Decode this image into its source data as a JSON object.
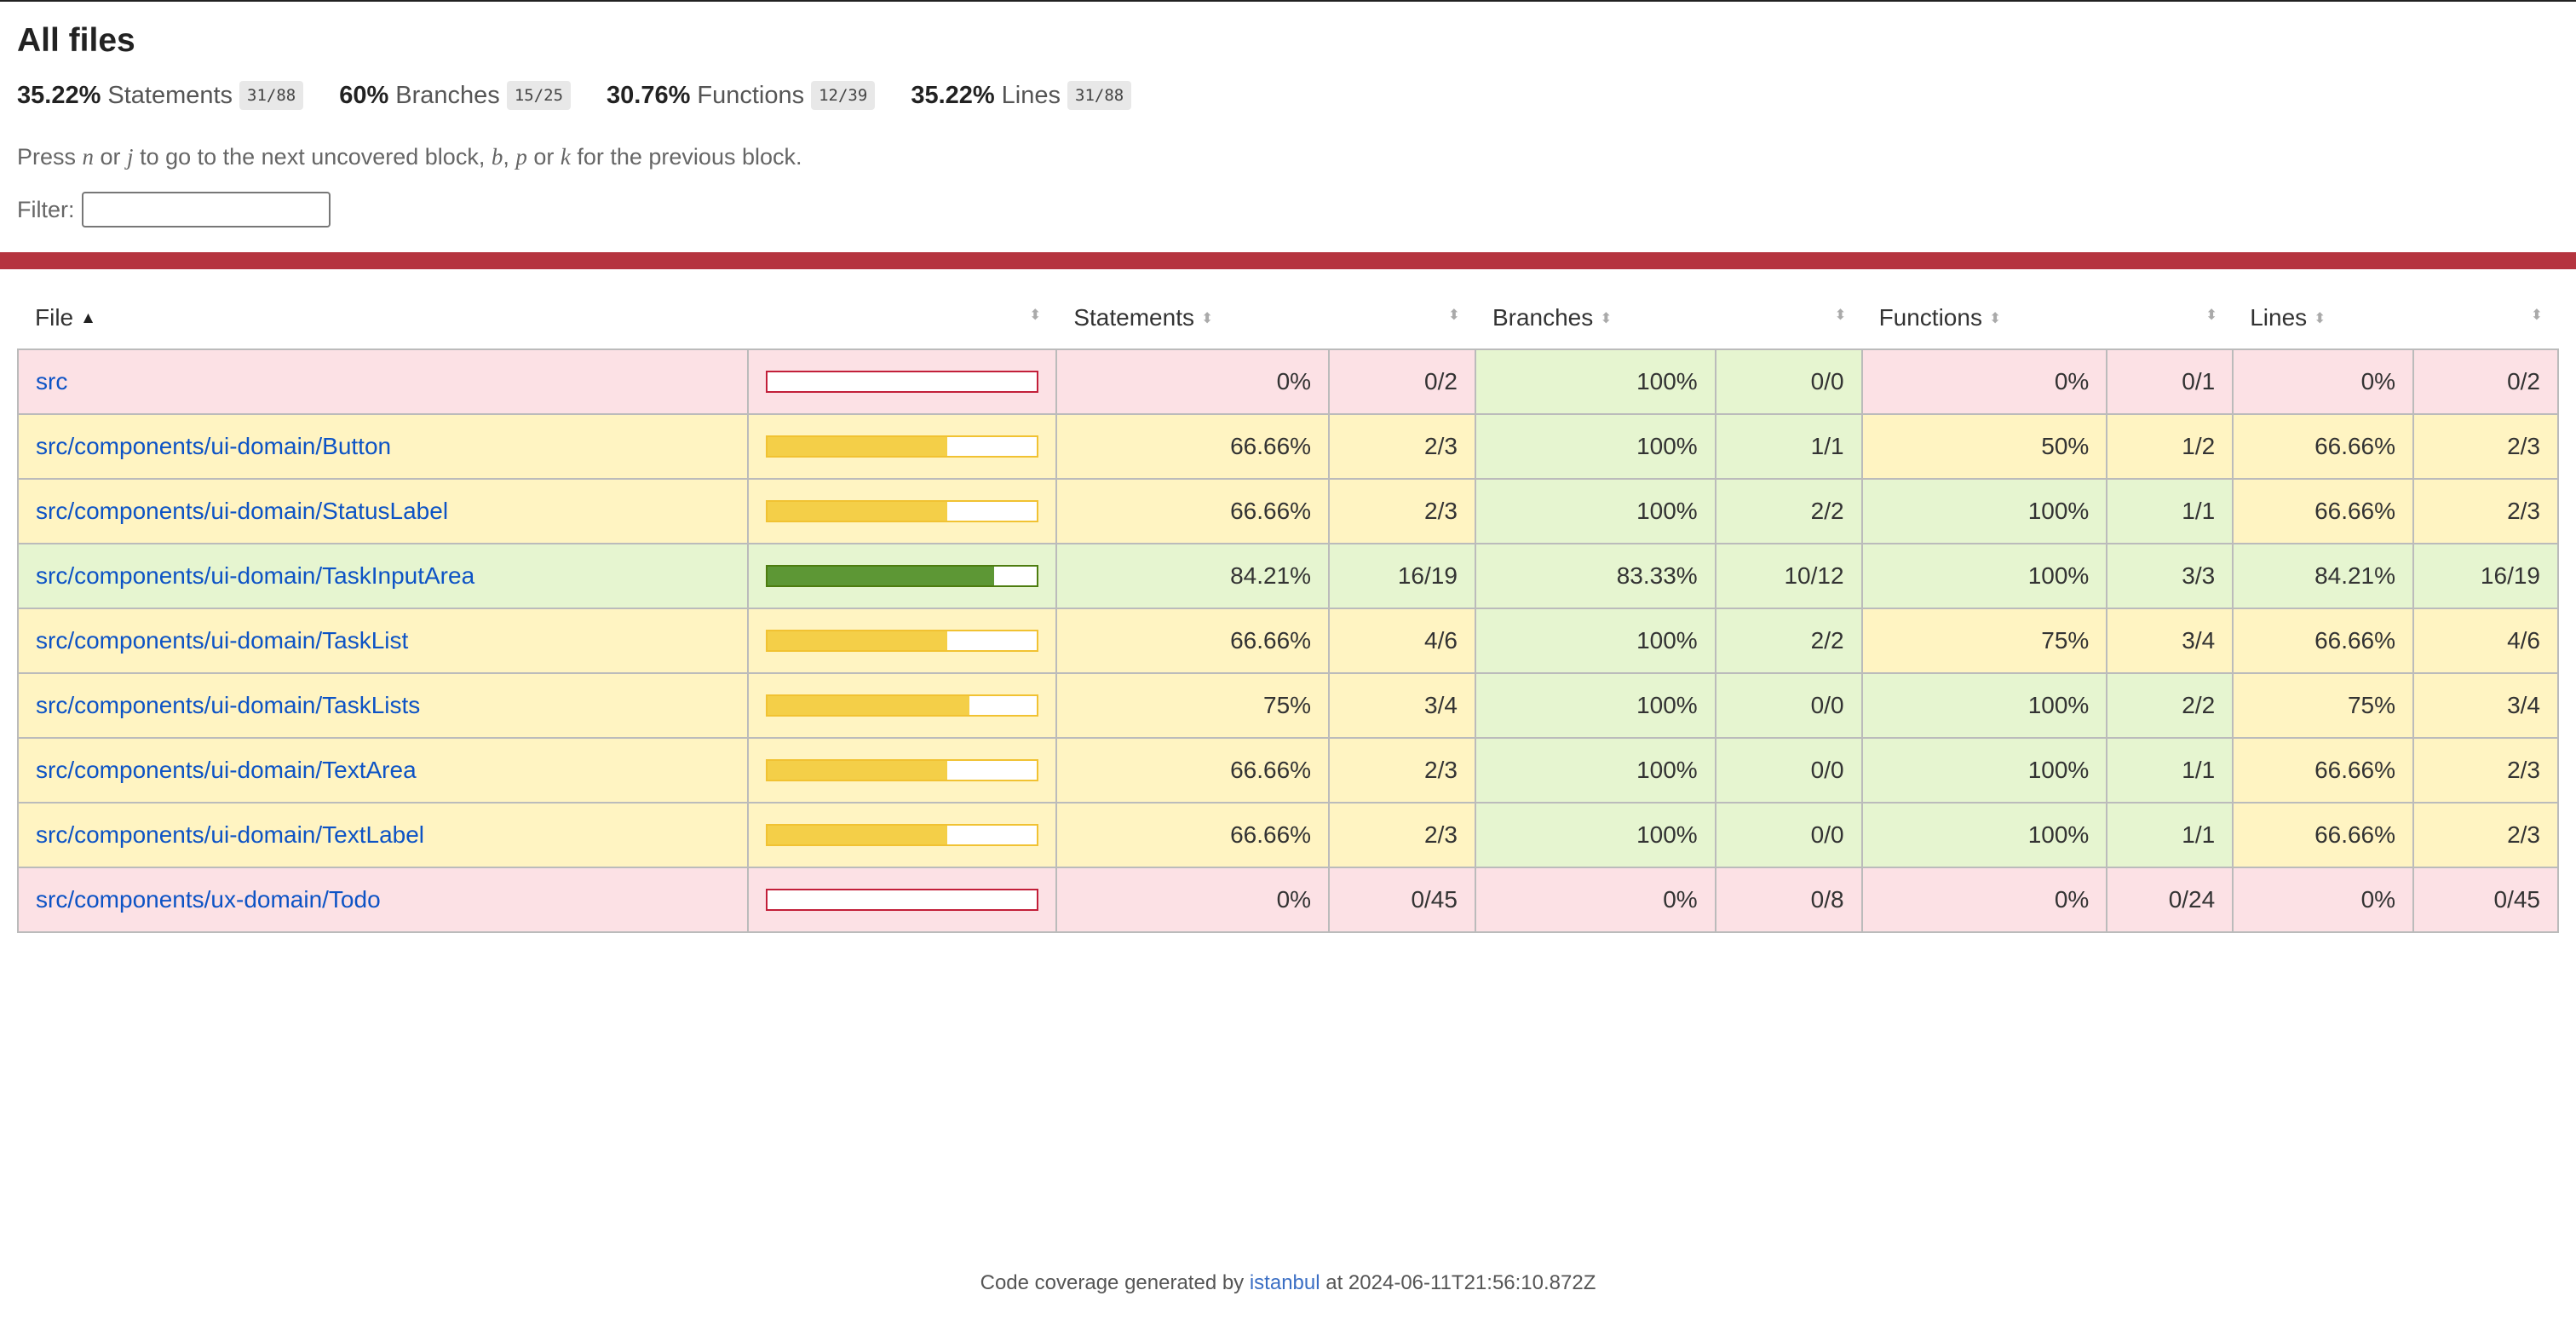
{
  "title": "All files",
  "summary": [
    {
      "pct": "35.22%",
      "label": "Statements",
      "frac": "31/88"
    },
    {
      "pct": "60%",
      "label": "Branches",
      "frac": "15/25"
    },
    {
      "pct": "30.76%",
      "label": "Functions",
      "frac": "12/39"
    },
    {
      "pct": "35.22%",
      "label": "Lines",
      "frac": "31/88"
    }
  ],
  "hint": {
    "p1": "Press ",
    "n": "n",
    "or1": " or ",
    "j": "j",
    "p2": " to go to the next uncovered block, ",
    "b": "b",
    "comma": ", ",
    "p": "p",
    "or2": " or ",
    "k": "k",
    "p3": " for the previous block."
  },
  "filter": {
    "label": "Filter:",
    "value": ""
  },
  "headers": {
    "file": "File",
    "statements": "Statements",
    "branches": "Branches",
    "functions": "Functions",
    "lines": "Lines"
  },
  "colors": {
    "low": "#fce1e5",
    "medium": "#fff4c2",
    "high": "#e6f5d0",
    "status_bar": "#b5343f",
    "link": "#0d53c5"
  },
  "rows": [
    {
      "file": "src",
      "level": "low",
      "bar_pct": 0,
      "stmt": "0%",
      "stmt_frac": "0/2",
      "stmt_level": "low",
      "br": "100%",
      "br_frac": "0/0",
      "br_level": "high",
      "fn": "0%",
      "fn_frac": "0/1",
      "fn_level": "low",
      "ln": "0%",
      "ln_frac": "0/2",
      "ln_level": "low"
    },
    {
      "file": "src/components/ui-domain/Button",
      "level": "medium",
      "bar_pct": 66.66,
      "stmt": "66.66%",
      "stmt_frac": "2/3",
      "stmt_level": "medium",
      "br": "100%",
      "br_frac": "1/1",
      "br_level": "high",
      "fn": "50%",
      "fn_frac": "1/2",
      "fn_level": "medium",
      "ln": "66.66%",
      "ln_frac": "2/3",
      "ln_level": "medium"
    },
    {
      "file": "src/components/ui-domain/StatusLabel",
      "level": "medium",
      "bar_pct": 66.66,
      "stmt": "66.66%",
      "stmt_frac": "2/3",
      "stmt_level": "medium",
      "br": "100%",
      "br_frac": "2/2",
      "br_level": "high",
      "fn": "100%",
      "fn_frac": "1/1",
      "fn_level": "high",
      "ln": "66.66%",
      "ln_frac": "2/3",
      "ln_level": "medium"
    },
    {
      "file": "src/components/ui-domain/TaskInputArea",
      "level": "high",
      "bar_pct": 84.21,
      "stmt": "84.21%",
      "stmt_frac": "16/19",
      "stmt_level": "high",
      "br": "83.33%",
      "br_frac": "10/12",
      "br_level": "high",
      "fn": "100%",
      "fn_frac": "3/3",
      "fn_level": "high",
      "ln": "84.21%",
      "ln_frac": "16/19",
      "ln_level": "high"
    },
    {
      "file": "src/components/ui-domain/TaskList",
      "level": "medium",
      "bar_pct": 66.66,
      "stmt": "66.66%",
      "stmt_frac": "4/6",
      "stmt_level": "medium",
      "br": "100%",
      "br_frac": "2/2",
      "br_level": "high",
      "fn": "75%",
      "fn_frac": "3/4",
      "fn_level": "medium",
      "ln": "66.66%",
      "ln_frac": "4/6",
      "ln_level": "medium"
    },
    {
      "file": "src/components/ui-domain/TaskLists",
      "level": "medium",
      "bar_pct": 75,
      "stmt": "75%",
      "stmt_frac": "3/4",
      "stmt_level": "medium",
      "br": "100%",
      "br_frac": "0/0",
      "br_level": "high",
      "fn": "100%",
      "fn_frac": "2/2",
      "fn_level": "high",
      "ln": "75%",
      "ln_frac": "3/4",
      "ln_level": "medium"
    },
    {
      "file": "src/components/ui-domain/TextArea",
      "level": "medium",
      "bar_pct": 66.66,
      "stmt": "66.66%",
      "stmt_frac": "2/3",
      "stmt_level": "medium",
      "br": "100%",
      "br_frac": "0/0",
      "br_level": "high",
      "fn": "100%",
      "fn_frac": "1/1",
      "fn_level": "high",
      "ln": "66.66%",
      "ln_frac": "2/3",
      "ln_level": "medium"
    },
    {
      "file": "src/components/ui-domain/TextLabel",
      "level": "medium",
      "bar_pct": 66.66,
      "stmt": "66.66%",
      "stmt_frac": "2/3",
      "stmt_level": "medium",
      "br": "100%",
      "br_frac": "0/0",
      "br_level": "high",
      "fn": "100%",
      "fn_frac": "1/1",
      "fn_level": "high",
      "ln": "66.66%",
      "ln_frac": "2/3",
      "ln_level": "medium"
    },
    {
      "file": "src/components/ux-domain/Todo",
      "level": "low",
      "bar_pct": 0,
      "stmt": "0%",
      "stmt_frac": "0/45",
      "stmt_level": "low",
      "br": "0%",
      "br_frac": "0/8",
      "br_level": "low",
      "fn": "0%",
      "fn_frac": "0/24",
      "fn_level": "low",
      "ln": "0%",
      "ln_frac": "0/45",
      "ln_level": "low"
    }
  ],
  "footer": {
    "prefix": "Code coverage generated by ",
    "link": "istanbul",
    "suffix": " at 2024-06-11T21:56:10.872Z"
  }
}
